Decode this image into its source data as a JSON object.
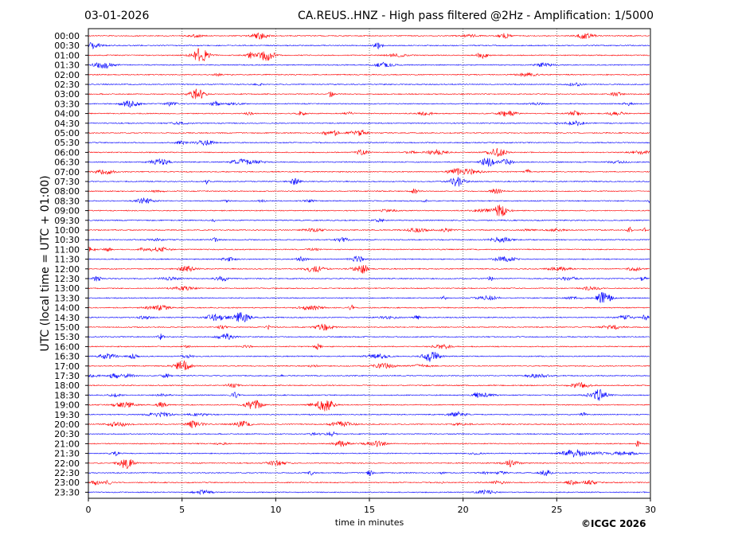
{
  "header": {
    "date": "03-01-2026",
    "title": "CA.REUS..HNZ - High pass filtered @2Hz - Amplification: 1/5000"
  },
  "footer": {
    "copyright": "©ICGC 2026"
  },
  "chart_data": {
    "type": "line",
    "xlabel": "time in minutes",
    "ylabel": "UTC (local time = UTC + 01:00)",
    "xlim": [
      0,
      30
    ],
    "x_ticks": [
      0,
      5,
      10,
      15,
      20,
      25,
      30
    ],
    "grid": "vertical dotted lines at x ticks",
    "trace_colors": [
      "#ff0000",
      "#0000ff"
    ],
    "rows": [
      "00:00",
      "00:30",
      "01:00",
      "01:30",
      "02:00",
      "02:30",
      "03:00",
      "03:30",
      "04:00",
      "04:30",
      "05:00",
      "05:30",
      "06:00",
      "06:30",
      "07:00",
      "07:30",
      "08:00",
      "08:30",
      "09:00",
      "09:30",
      "10:00",
      "10:30",
      "11:00",
      "11:30",
      "12:00",
      "12:30",
      "13:00",
      "13:30",
      "14:00",
      "14:30",
      "15:00",
      "15:30",
      "16:00",
      "16:30",
      "17:00",
      "17:30",
      "18:00",
      "18:30",
      "19:00",
      "19:30",
      "20:00",
      "20:30",
      "21:00",
      "21:30",
      "22:00",
      "22:30",
      "23:00",
      "23:30"
    ],
    "notable_events": [
      {
        "row": "01:00",
        "x": 6.0
      },
      {
        "row": "01:00",
        "x": 9.5
      },
      {
        "row": "03:00",
        "x": 5.8
      },
      {
        "row": "06:00",
        "x": 21.8
      },
      {
        "row": "09:00",
        "x": 22.0
      },
      {
        "row": "13:30",
        "x": 27.5
      },
      {
        "row": "14:30",
        "x": 8.2
      },
      {
        "row": "16:30",
        "x": 18.3
      },
      {
        "row": "17:00",
        "x": 5.0
      },
      {
        "row": "19:00",
        "x": 8.8
      },
      {
        "row": "19:00",
        "x": 12.7
      },
      {
        "row": "22:00",
        "x": 2.0
      }
    ]
  }
}
